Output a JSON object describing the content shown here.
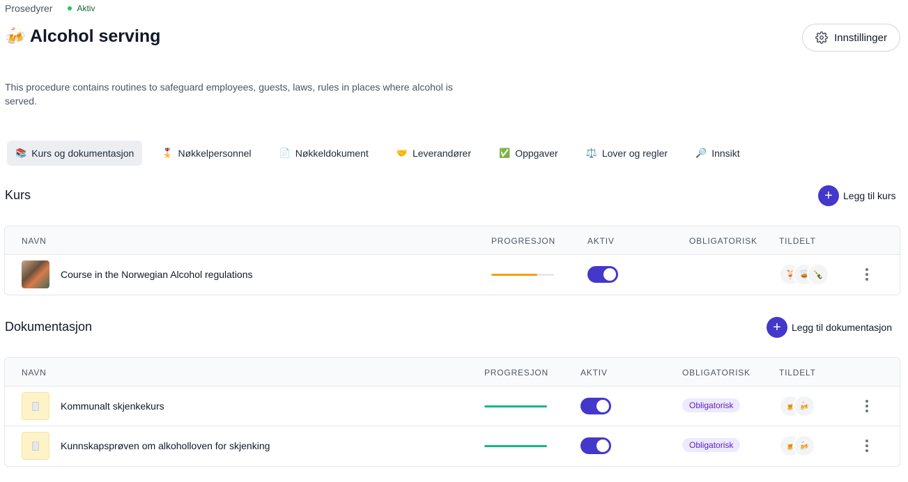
{
  "breadcrumb": {
    "label": "Prosedyrer",
    "status": "Aktiv"
  },
  "header": {
    "icon": "beer-mugs-icon",
    "emoji": "🍻",
    "title": "Alcohol serving",
    "settings_label": "Innstillinger"
  },
  "description": "This procedure contains routines to safeguard employees, guests, laws, rules in places where alcohol is served.",
  "tabs": [
    {
      "emoji": "📚",
      "label": "Kurs og dokumentasjon",
      "active": true
    },
    {
      "emoji": "🎖️",
      "label": "Nøkkelpersonnel"
    },
    {
      "emoji": "📄",
      "label": "Nøkkeldokument"
    },
    {
      "emoji": "🤝",
      "label": "Leverandører"
    },
    {
      "emoji": "✅",
      "label": "Oppgaver"
    },
    {
      "emoji": "⚖️",
      "label": "Lover og regler"
    },
    {
      "emoji": "🔎",
      "label": "Innsikt"
    }
  ],
  "courses": {
    "title": "Kurs",
    "add_label": "Legg til kurs",
    "columns": {
      "name": "NAVN",
      "progress": "PROGRESJON",
      "active": "AKTIV",
      "mandatory": "OBLIGATORISK",
      "assigned": "TILDELT"
    },
    "rows": [
      {
        "name": "Course in the Norwegian Alcohol regulations",
        "progress": 0.73,
        "progress_color": "#f59e0b",
        "active": true,
        "mandatory": "",
        "avatars": [
          "🍹",
          "🥃",
          "🍾"
        ]
      }
    ]
  },
  "documentation": {
    "title": "Dokumentasjon",
    "add_label": "Legg til dokumentasjon",
    "columns": {
      "name": "NAVN",
      "progress": "PROGRESJON",
      "active": "AKTIV",
      "mandatory": "OBLIGATORISK",
      "assigned": "TILDELT"
    },
    "rows": [
      {
        "name": "Kommunalt skjenkekurs",
        "progress": 1.0,
        "progress_color": "#10b981",
        "active": true,
        "mandatory": "Obligatorisk",
        "avatars": [
          "🍺",
          "🍻"
        ]
      },
      {
        "name": "Kunnskapsprøven om alkoholloven for skjenking",
        "progress": 1.0,
        "progress_color": "#10b981",
        "active": true,
        "mandatory": "Obligatorisk",
        "avatars": [
          "🍺",
          "🍻"
        ]
      }
    ]
  },
  "colors": {
    "accent": "#4338ca",
    "status_active": "#22c55e",
    "badge_bg": "#ede9fe",
    "badge_text": "#5b21b6"
  }
}
